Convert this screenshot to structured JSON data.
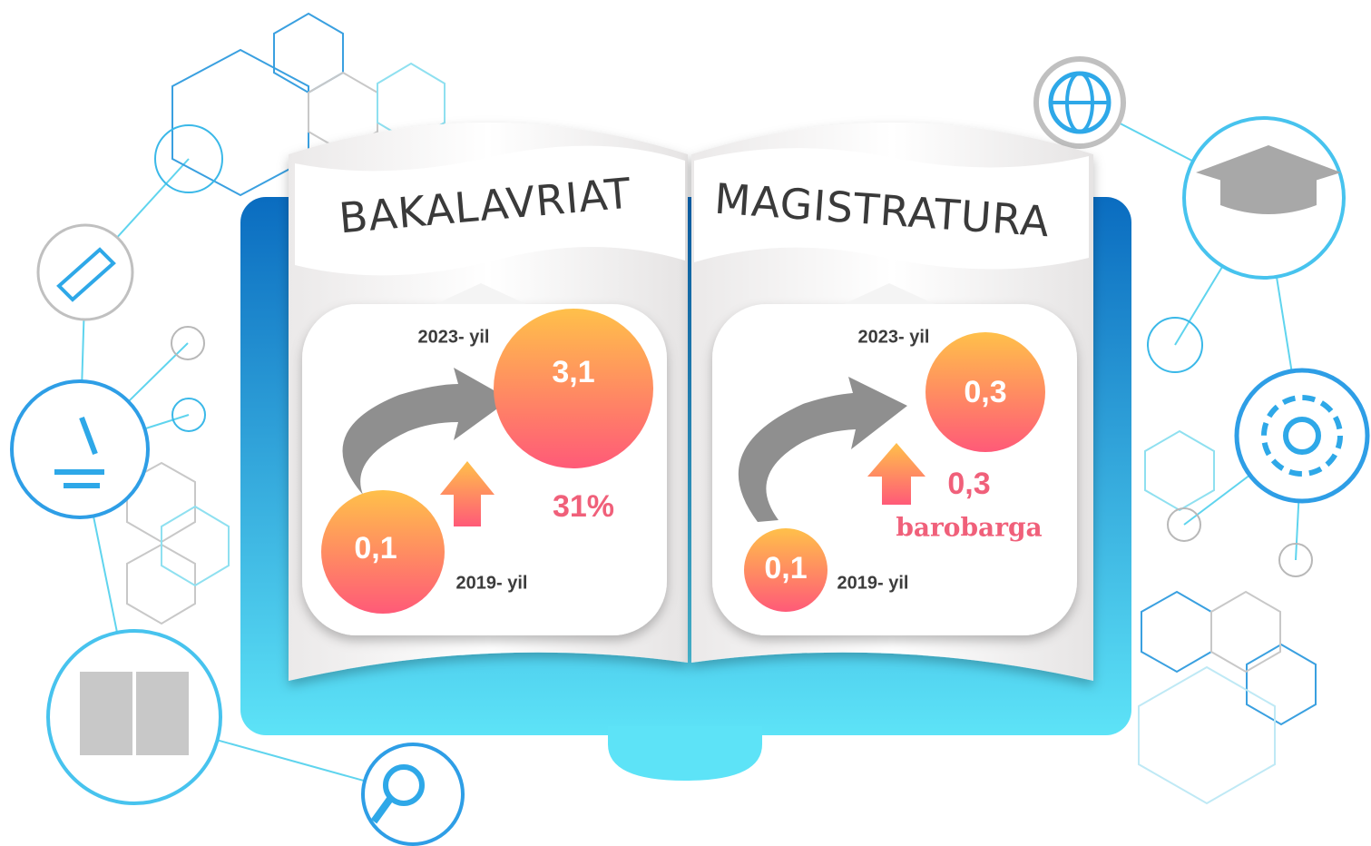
{
  "pages": [
    {
      "title": "BAKALAVRIAT",
      "year_2023": "2023- yil",
      "value_2023": "3,1",
      "year_2019": "2019- yil",
      "value_2019": "0,1",
      "growth": "31%"
    },
    {
      "title": "MAGISTRATURA",
      "year_2023": "2023- yil",
      "value_2023": "0,3",
      "year_2019": "2019- yil",
      "value_2019": "0,1",
      "growth": "0,3",
      "growth_note": "barobarga"
    }
  ]
}
